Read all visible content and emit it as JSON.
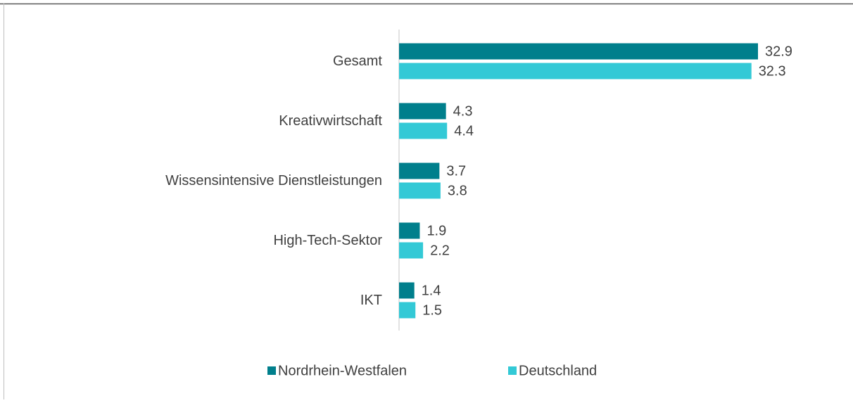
{
  "chart_data": {
    "type": "hbar",
    "categories": [
      "Gesamt",
      "Kreativwirtschaft",
      "Wissensintensive Dienstleistungen",
      "High-Tech-Sektor",
      "IKT"
    ],
    "series": [
      {
        "name": "Nordrhein-Westfalen",
        "color": "#007f8c",
        "values": [
          32.9,
          4.3,
          3.7,
          1.9,
          1.4
        ]
      },
      {
        "name": "Deutschland",
        "color": "#33c9d6",
        "values": [
          32.3,
          4.4,
          3.8,
          2.2,
          1.5
        ]
      }
    ],
    "legend": "bottom"
  }
}
